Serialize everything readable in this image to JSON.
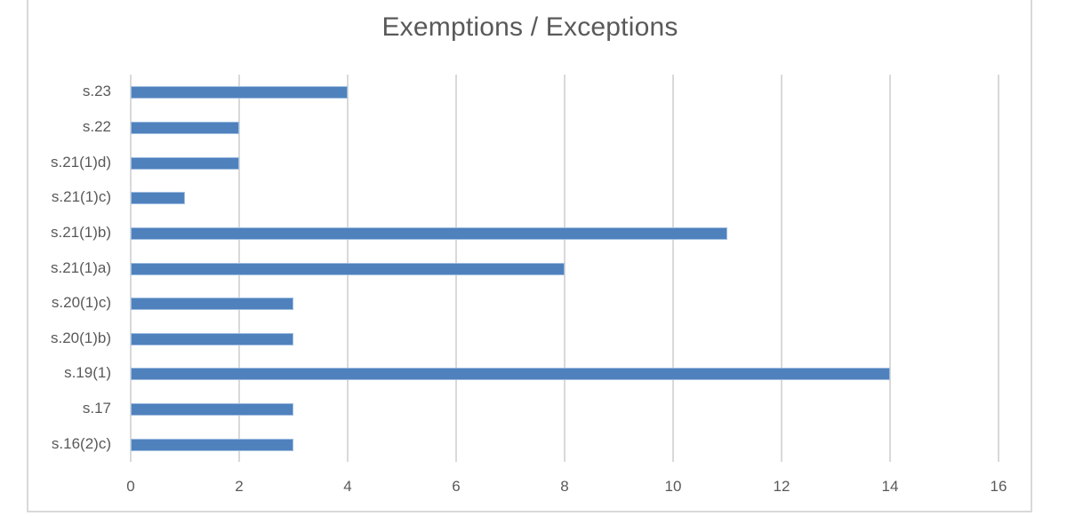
{
  "chart_data": {
    "type": "bar",
    "orientation": "horizontal",
    "title": "Exemptions / Exceptions",
    "xlabel": "",
    "ylabel": "",
    "categories": [
      "s.23",
      "s.22",
      "s.21(1)d)",
      "s.21(1)c)",
      "s.21(1)b)",
      "s.21(1)a)",
      "s.20(1)c)",
      "s.20(1)b)",
      "s.19(1)",
      "s.17",
      "s.16(2)c)"
    ],
    "values": [
      4,
      2,
      2,
      1,
      11,
      8,
      3,
      3,
      14,
      3,
      3
    ],
    "xlim": [
      0,
      16
    ],
    "xticks": [
      "0",
      "2",
      "4",
      "6",
      "8",
      "10",
      "12",
      "14",
      "16"
    ],
    "grid": "vertical",
    "legend": "none",
    "bar_color": "#4f81bd"
  }
}
